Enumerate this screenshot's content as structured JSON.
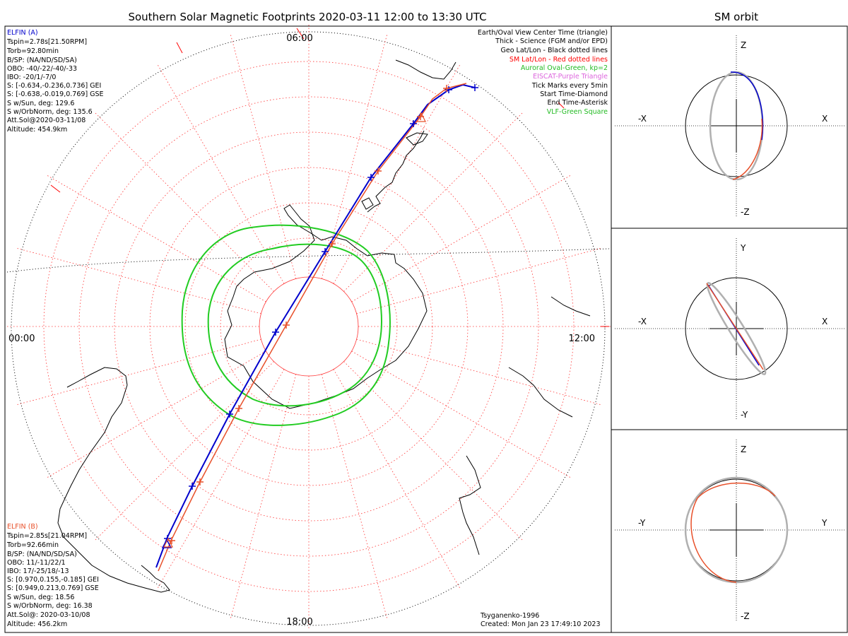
{
  "title": "Southern Solar Magnetic Footprints 2020-03-11 12:00 to 13:30 UTC",
  "orbit_title": "SM orbit",
  "time_labels": {
    "top": "06:00",
    "left": "00:00",
    "right": "12:00",
    "bottom": "18:00"
  },
  "elfin_a": {
    "color": "#0000cc",
    "lines": [
      "ELFIN (A)",
      "Tspin=2.78s[21.50RPM]",
      "Torb=92.80min",
      "B/SP: (NA/ND/SD/SA)",
      "OBO: -40/-22/-40/-33",
      "IBO: -20/1/-7/0",
      "S: [-0.634,-0.236,0.736] GEI",
      "S: [-0.638,-0.019,0.769] GSE",
      "S w/Sun, deg: 129.6",
      "S w/OrbNorm, deg: 135.6",
      "Att.Sol@2020-03-11/08",
      "Altitude: 454.9km"
    ]
  },
  "elfin_b": {
    "color": "#e8502a",
    "lines": [
      "ELFIN (B)",
      "Tspin=2.85s[21.04RPM]",
      "Torb=92.66min",
      "B/SP: (NA/ND/SD/SA)",
      "OBO: 11/-11/22/1",
      "IBO: 17/-25/18/-13",
      "S: [0.970,0.155,-0.185] GEI",
      "S: [0.949,0.213,0.769] GSE",
      "S w/Sun, deg: 18.56",
      "S w/OrbNorm, deg: 16.38",
      "Att.Sol@: 2020-03-10/08",
      "Altitude: 456.2km"
    ]
  },
  "legend": [
    {
      "text": "Earth/Oval View Center Time (triangle)",
      "color": "#000000"
    },
    {
      "text": "Thick - Science (FGM and/or EPD)",
      "color": "#000000"
    },
    {
      "text": "Geo Lat/Lon - Black dotted lines",
      "color": "#000000"
    },
    {
      "text": "SM Lat/Lon - Red dotted lines",
      "color": "#ff0000"
    },
    {
      "text": "Auroral Oval-Green, kp=2",
      "color": "#22bb22"
    },
    {
      "text": "EISCAT-Purple Triangle",
      "color": "#dd66dd"
    },
    {
      "text": "Tick Marks every 5min",
      "color": "#000000"
    },
    {
      "text": "Start Time-Diamond",
      "color": "#000000"
    },
    {
      "text": "End Time-Asterisk",
      "color": "#000000"
    },
    {
      "text": "VLF-Green Square",
      "color": "#22bb22"
    }
  ],
  "footer": {
    "model": "Tsyganenko-1996",
    "created": "Created: Mon Jan 23 17:49:10 2023"
  },
  "panels": [
    {
      "up": "Z",
      "down": "-Z",
      "left": "-X",
      "right": "X"
    },
    {
      "up": "Y",
      "down": "-Y",
      "left": "-X",
      "right": "X"
    },
    {
      "up": "Z",
      "down": "-Z",
      "left": "-Y",
      "right": "Y"
    }
  ],
  "colors": {
    "blue": "#0000cc",
    "red": "#e8502a",
    "green": "#22cc22",
    "gray": "#b0b0b0",
    "grid_red": "#ff3333"
  }
}
